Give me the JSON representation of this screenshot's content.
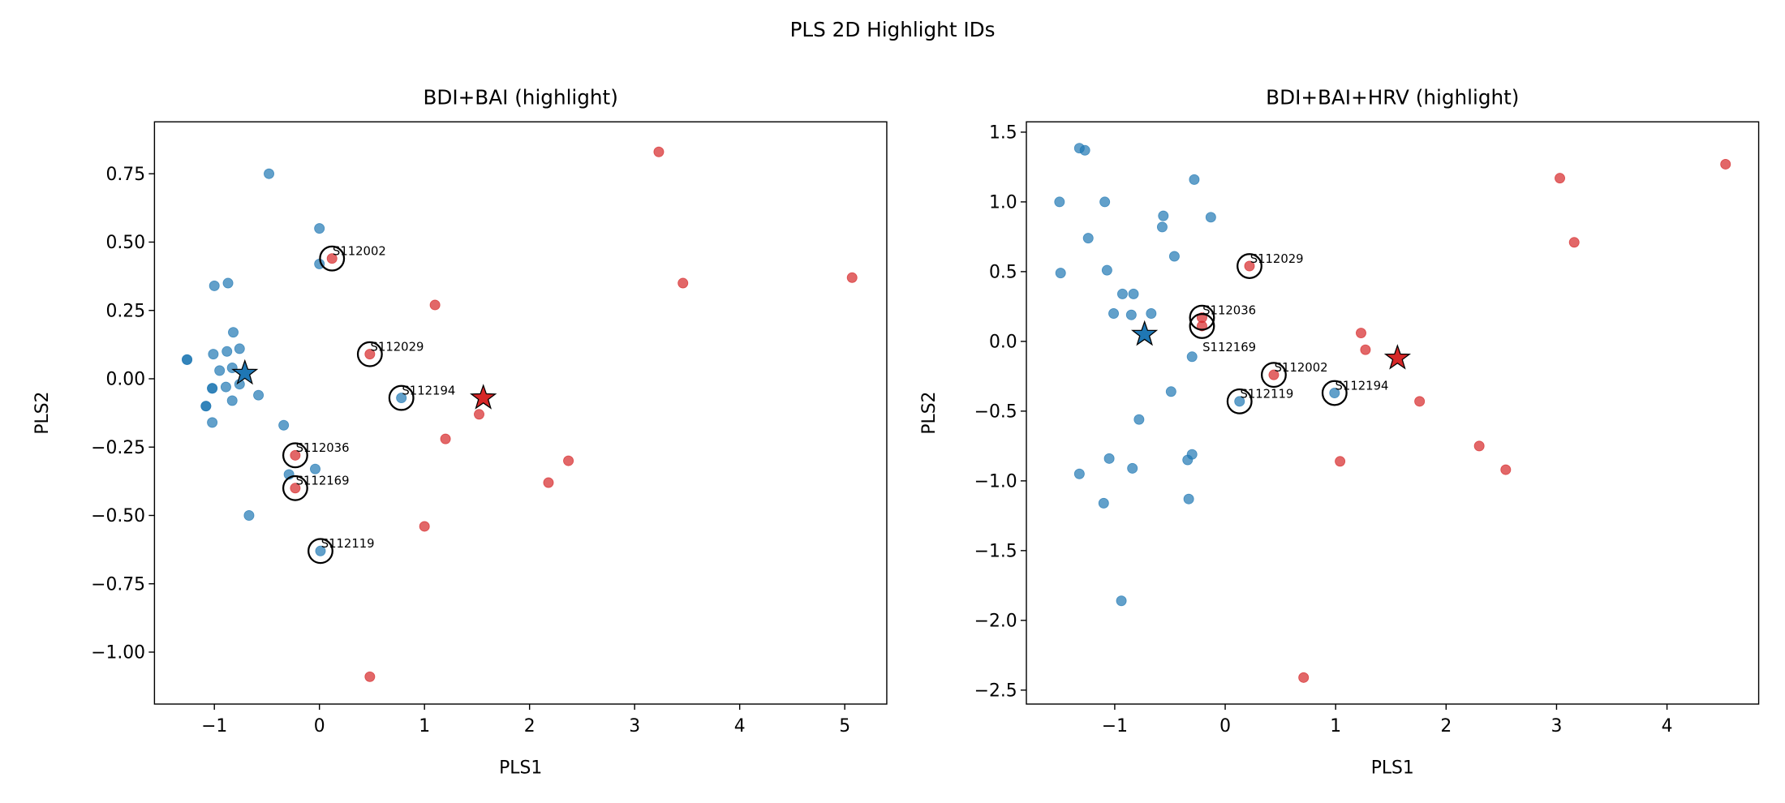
{
  "figure_title": "PLS 2D Highlight IDs",
  "colors": {
    "group_a": "#1f77b4",
    "group_b": "#d62728"
  },
  "chart_data": [
    {
      "type": "scatter",
      "title": "BDI+BAI (highlight)",
      "xlabel": "PLS1",
      "ylabel": "PLS2",
      "xlim": [
        -1.57,
        5.4
      ],
      "ylim": [
        -1.19,
        0.94
      ],
      "xticks": [
        -1,
        0,
        1,
        2,
        3,
        4,
        5
      ],
      "xtick_labels": [
        "−1",
        "0",
        "1",
        "2",
        "3",
        "4",
        "5"
      ],
      "yticks": [
        0.75,
        0.5,
        0.25,
        0,
        -0.25,
        -0.5,
        -0.75,
        -1.0
      ],
      "ytick_labels": [
        "0.75",
        "0.50",
        "0.25",
        "0.00",
        "−0.25",
        "−0.50",
        "−0.75",
        "−1.00"
      ],
      "grid": false,
      "points_group_a": [
        [
          -0.48,
          0.75
        ],
        [
          0.0,
          0.55
        ],
        [
          0.0,
          0.42
        ],
        [
          -1.0,
          0.34
        ],
        [
          -0.87,
          0.35
        ],
        [
          -0.82,
          0.17
        ],
        [
          -0.76,
          0.11
        ],
        [
          -1.01,
          0.09
        ],
        [
          -0.88,
          0.1
        ],
        [
          -0.95,
          0.03
        ],
        [
          -0.83,
          0.04
        ],
        [
          -1.26,
          0.07
        ],
        [
          -1.26,
          0.07
        ],
        [
          -1.02,
          -0.035
        ],
        [
          -1.02,
          -0.035
        ],
        [
          -0.89,
          -0.03
        ],
        [
          -0.76,
          -0.02
        ],
        [
          -0.58,
          -0.06
        ],
        [
          -0.83,
          -0.08
        ],
        [
          -1.08,
          -0.1
        ],
        [
          -1.08,
          -0.1
        ],
        [
          -1.02,
          -0.16
        ],
        [
          -0.34,
          -0.17
        ],
        [
          -0.04,
          -0.33
        ],
        [
          -0.29,
          -0.35
        ],
        [
          -0.67,
          -0.5
        ],
        [
          0.01,
          -0.63
        ],
        [
          0.78,
          -0.07
        ]
      ],
      "points_group_b": [
        [
          3.23,
          0.83
        ],
        [
          3.46,
          0.35
        ],
        [
          5.07,
          0.37
        ],
        [
          1.1,
          0.27
        ],
        [
          0.12,
          0.44
        ],
        [
          0.48,
          0.09
        ],
        [
          1.52,
          -0.13
        ],
        [
          1.2,
          -0.22
        ],
        [
          2.37,
          -0.3
        ],
        [
          2.18,
          -0.38
        ],
        [
          -0.23,
          -0.28
        ],
        [
          -0.23,
          -0.4
        ],
        [
          1.0,
          -0.54
        ],
        [
          0.48,
          -1.09
        ]
      ],
      "centroid_group_a": [
        -0.71,
        0.02
      ],
      "centroid_group_b": [
        1.56,
        -0.07
      ],
      "highlights": [
        {
          "id": "S112002",
          "x": 0.12,
          "y": 0.44
        },
        {
          "id": "S112029",
          "x": 0.48,
          "y": 0.09
        },
        {
          "id": "S112194",
          "x": 0.78,
          "y": -0.07
        },
        {
          "id": "S112036",
          "x": -0.23,
          "y": -0.28
        },
        {
          "id": "S112169",
          "x": -0.23,
          "y": -0.4
        },
        {
          "id": "S112119",
          "x": 0.01,
          "y": -0.63
        }
      ]
    },
    {
      "type": "scatter",
      "title": "BDI+BAI+HRV (highlight)",
      "xlabel": "PLS1",
      "ylabel": "PLS2",
      "xlim": [
        -1.8,
        4.83
      ],
      "ylim": [
        -2.6,
        1.574
      ],
      "xticks": [
        -1,
        0,
        1,
        2,
        3,
        4
      ],
      "xtick_labels": [
        "−1",
        "0",
        "1",
        "2",
        "3",
        "4"
      ],
      "yticks": [
        1.5,
        1.0,
        0.5,
        0.0,
        -0.5,
        -1.0,
        -1.5,
        -2.0,
        -2.5
      ],
      "ytick_labels": [
        "1.5",
        "1.0",
        "0.5",
        "0.0",
        "−0.5",
        "−1.0",
        "−1.5",
        "−2.0",
        "−2.5"
      ],
      "grid": false,
      "points_group_a": [
        [
          -1.32,
          1.385
        ],
        [
          -1.27,
          1.37
        ],
        [
          -0.28,
          1.16
        ],
        [
          -1.5,
          1.0
        ],
        [
          -1.09,
          1.0
        ],
        [
          -0.56,
          0.9
        ],
        [
          -0.13,
          0.89
        ],
        [
          -0.57,
          0.82
        ],
        [
          -1.24,
          0.74
        ],
        [
          -0.46,
          0.61
        ],
        [
          -1.49,
          0.49
        ],
        [
          -1.07,
          0.51
        ],
        [
          -0.93,
          0.34
        ],
        [
          -0.83,
          0.34
        ],
        [
          -1.01,
          0.2
        ],
        [
          -0.85,
          0.19
        ],
        [
          -0.67,
          0.2
        ],
        [
          -0.3,
          -0.11
        ],
        [
          -0.49,
          -0.36
        ],
        [
          -0.78,
          -0.56
        ],
        [
          -0.3,
          -0.81
        ],
        [
          -0.34,
          -0.85
        ],
        [
          -1.05,
          -0.84
        ],
        [
          -0.84,
          -0.91
        ],
        [
          -1.32,
          -0.95
        ],
        [
          -1.1,
          -1.16
        ],
        [
          -0.33,
          -1.13
        ],
        [
          -0.94,
          -1.86
        ],
        [
          0.13,
          -0.43
        ],
        [
          0.99,
          -0.37
        ]
      ],
      "points_group_b": [
        [
          4.53,
          1.27
        ],
        [
          3.03,
          1.17
        ],
        [
          3.16,
          0.71
        ],
        [
          0.22,
          0.54
        ],
        [
          -0.21,
          0.17
        ],
        [
          -0.21,
          0.11
        ],
        [
          1.23,
          0.06
        ],
        [
          1.27,
          -0.06
        ],
        [
          0.44,
          -0.24
        ],
        [
          1.76,
          -0.43
        ],
        [
          2.3,
          -0.75
        ],
        [
          2.54,
          -0.92
        ],
        [
          1.04,
          -0.86
        ],
        [
          0.71,
          -2.41
        ]
      ],
      "centroid_group_a": [
        -0.73,
        0.05
      ],
      "centroid_group_b": [
        1.56,
        -0.12
      ],
      "highlights": [
        {
          "id": "S112029",
          "x": 0.22,
          "y": 0.54
        },
        {
          "id": "S112036",
          "x": -0.21,
          "y": 0.17
        },
        {
          "id": "S112169",
          "x": -0.21,
          "y": 0.11
        },
        {
          "id": "S112002",
          "x": 0.44,
          "y": -0.24
        },
        {
          "id": "S112119",
          "x": 0.13,
          "y": -0.43
        },
        {
          "id": "S112194",
          "x": 0.99,
          "y": -0.37
        }
      ]
    }
  ]
}
